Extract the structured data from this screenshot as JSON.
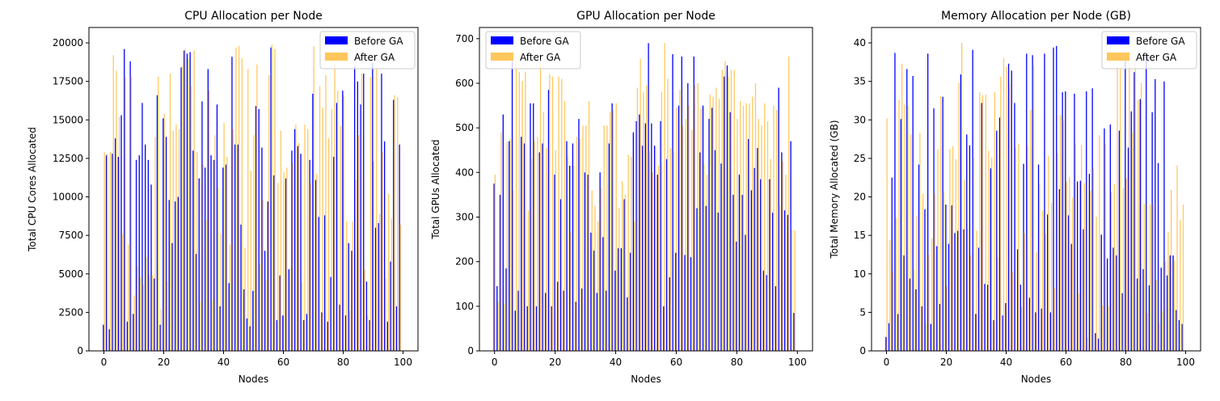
{
  "colors": {
    "before": "#0000ff",
    "after": "#ffc65c",
    "axis": "#000000"
  },
  "chart_data": [
    {
      "type": "bar",
      "title": "CPU Allocation per Node",
      "xlabel": "Nodes",
      "ylabel": "Total CPU Cores Allocated",
      "xlim": [
        -5,
        105
      ],
      "ylim": [
        0,
        21000
      ],
      "xticks": [
        0,
        20,
        40,
        60,
        80,
        100
      ],
      "yticks": [
        0,
        2500,
        5000,
        7500,
        10000,
        12500,
        15000,
        17500,
        20000
      ],
      "legend_position": "top-right",
      "x": [
        0,
        1,
        2,
        3,
        4,
        5,
        6,
        7,
        8,
        9,
        10,
        11,
        12,
        13,
        14,
        15,
        16,
        17,
        18,
        19,
        20,
        21,
        22,
        23,
        24,
        25,
        26,
        27,
        28,
        29,
        30,
        31,
        32,
        33,
        34,
        35,
        36,
        37,
        38,
        39,
        40,
        41,
        42,
        43,
        44,
        45,
        46,
        47,
        48,
        49,
        50,
        51,
        52,
        53,
        54,
        55,
        56,
        57,
        58,
        59,
        60,
        61,
        62,
        63,
        64,
        65,
        66,
        67,
        68,
        69,
        70,
        71,
        72,
        73,
        74,
        75,
        76,
        77,
        78,
        79,
        80,
        81,
        82,
        83,
        84,
        85,
        86,
        87,
        88,
        89,
        90,
        91,
        92,
        93,
        94,
        95,
        96,
        97,
        98,
        99
      ],
      "series": [
        {
          "name": "Before GA",
          "values": [
            1700,
            12700,
            1400,
            12800,
            13800,
            12600,
            15300,
            19600,
            1900,
            18800,
            2400,
            12400,
            12700,
            16100,
            13400,
            12400,
            10800,
            4700,
            16600,
            1700,
            15100,
            13900,
            9800,
            7000,
            9700,
            10000,
            18400,
            19500,
            19300,
            19400,
            13000,
            6300,
            11200,
            16200,
            11900,
            18300,
            12700,
            12400,
            16000,
            2900,
            11900,
            12100,
            4400,
            19100,
            13400,
            13400,
            8200,
            4000,
            2100,
            1600,
            3900,
            15900,
            15700,
            13200,
            6500,
            9700,
            19700,
            11400,
            2000,
            4900,
            2300,
            11200,
            5300,
            13000,
            14400,
            13300,
            12800,
            2000,
            2400,
            12400,
            16700,
            11100,
            8700,
            2500,
            8800,
            1900,
            4800,
            12600,
            16100,
            3000,
            16900,
            2300,
            7000,
            6500,
            18500,
            17500,
            16000,
            18000,
            4500,
            2000,
            18700,
            8000,
            8300,
            18000,
            13600,
            1900,
            5800,
            16300,
            2900,
            13400
          ]
        },
        {
          "name": "After GA",
          "values": [
            12900,
            12800,
            12900,
            19200,
            18200,
            15200,
            7600,
            17800,
            6900,
            17800,
            3600,
            5500,
            4800,
            4300,
            6100,
            4900,
            4900,
            13900,
            17800,
            2700,
            15400,
            4500,
            18000,
            14300,
            14700,
            14400,
            18500,
            19600,
            19000,
            17200,
            19500,
            12900,
            3200,
            12100,
            8500,
            16900,
            3300,
            14000,
            10600,
            7600,
            14800,
            12600,
            6900,
            14400,
            19700,
            19800,
            19000,
            6700,
            18300,
            11700,
            14000,
            18600,
            5600,
            9800,
            4600,
            17900,
            19900,
            19600,
            10900,
            14300,
            11600,
            11900,
            5300,
            12200,
            14700,
            13500,
            4500,
            14700,
            14400,
            10900,
            19800,
            11500,
            17200,
            15800,
            17900,
            13800,
            15700,
            18700,
            16900,
            14600,
            16600,
            8400,
            2600,
            8400,
            11100,
            14000,
            18000,
            5300,
            2300,
            17800,
            12300,
            18300,
            8900,
            12900,
            4700,
            10200,
            8600,
            16600,
            16500,
            8200
          ]
        }
      ]
    },
    {
      "type": "bar",
      "title": "GPU Allocation per Node",
      "xlabel": "Nodes",
      "ylabel": "Total GPUs Allocated",
      "xlim": [
        -5,
        105
      ],
      "ylim": [
        0,
        725
      ],
      "xticks": [
        0,
        20,
        40,
        60,
        80,
        100
      ],
      "yticks": [
        0,
        100,
        200,
        300,
        400,
        500,
        600,
        700
      ],
      "legend_position": "top-left",
      "x": [
        0,
        1,
        2,
        3,
        4,
        5,
        6,
        7,
        8,
        9,
        10,
        11,
        12,
        13,
        14,
        15,
        16,
        17,
        18,
        19,
        20,
        21,
        22,
        23,
        24,
        25,
        26,
        27,
        28,
        29,
        30,
        31,
        32,
        33,
        34,
        35,
        36,
        37,
        38,
        39,
        40,
        41,
        42,
        43,
        44,
        45,
        46,
        47,
        48,
        49,
        50,
        51,
        52,
        53,
        54,
        55,
        56,
        57,
        58,
        59,
        60,
        61,
        62,
        63,
        64,
        65,
        66,
        67,
        68,
        69,
        70,
        71,
        72,
        73,
        74,
        75,
        76,
        77,
        78,
        79,
        80,
        81,
        82,
        83,
        84,
        85,
        86,
        87,
        88,
        89,
        90,
        91,
        92,
        93,
        94,
        95,
        96,
        97,
        98,
        99
      ],
      "series": [
        {
          "name": "Before GA",
          "values": [
            375,
            145,
            350,
            530,
            185,
            470,
            650,
            90,
            135,
            480,
            465,
            100,
            555,
            555,
            100,
            445,
            465,
            130,
            585,
            100,
            395,
            155,
            340,
            135,
            470,
            415,
            465,
            110,
            520,
            140,
            400,
            395,
            265,
            225,
            130,
            400,
            255,
            135,
            465,
            555,
            180,
            230,
            230,
            340,
            120,
            220,
            490,
            515,
            530,
            460,
            510,
            690,
            510,
            460,
            395,
            515,
            100,
            430,
            165,
            665,
            220,
            550,
            660,
            215,
            600,
            210,
            660,
            320,
            445,
            550,
            325,
            520,
            545,
            450,
            310,
            420,
            615,
            640,
            535,
            350,
            245,
            395,
            350,
            260,
            475,
            360,
            410,
            455,
            385,
            180,
            170,
            385,
            310,
            145,
            590,
            445,
            315,
            305,
            470,
            85
          ]
        },
        {
          "name": "After GA",
          "values": [
            395,
            110,
            490,
            105,
            470,
            475,
            360,
            650,
            625,
            605,
            625,
            315,
            430,
            470,
            480,
            645,
            535,
            455,
            620,
            615,
            450,
            615,
            610,
            560,
            435,
            265,
            415,
            480,
            475,
            505,
            505,
            560,
            360,
            325,
            290,
            365,
            505,
            505,
            535,
            540,
            555,
            320,
            380,
            350,
            440,
            435,
            290,
            590,
            655,
            580,
            595,
            445,
            400,
            460,
            415,
            580,
            690,
            610,
            455,
            445,
            545,
            585,
            505,
            520,
            550,
            495,
            595,
            600,
            545,
            420,
            395,
            575,
            570,
            590,
            565,
            630,
            650,
            615,
            630,
            630,
            520,
            560,
            550,
            555,
            555,
            570,
            600,
            520,
            505,
            555,
            515,
            430,
            550,
            540,
            325,
            425,
            395,
            660,
            270,
            270
          ]
        }
      ]
    },
    {
      "type": "bar",
      "title": "Memory Allocation per Node (GB)",
      "xlabel": "Nodes",
      "ylabel": "Total Memory Allocated (GB)",
      "xlim": [
        -5,
        105
      ],
      "ylim": [
        0,
        42
      ],
      "xticks": [
        0,
        20,
        40,
        60,
        80,
        100
      ],
      "yticks": [
        0,
        5,
        10,
        15,
        20,
        25,
        30,
        35,
        40
      ],
      "legend_position": "top-right",
      "x": [
        0,
        1,
        2,
        3,
        4,
        5,
        6,
        7,
        8,
        9,
        10,
        11,
        12,
        13,
        14,
        15,
        16,
        17,
        18,
        19,
        20,
        21,
        22,
        23,
        24,
        25,
        26,
        27,
        28,
        29,
        30,
        31,
        32,
        33,
        34,
        35,
        36,
        37,
        38,
        39,
        40,
        41,
        42,
        43,
        44,
        45,
        46,
        47,
        48,
        49,
        50,
        51,
        52,
        53,
        54,
        55,
        56,
        57,
        58,
        59,
        60,
        61,
        62,
        63,
        64,
        65,
        66,
        67,
        68,
        69,
        70,
        71,
        72,
        73,
        74,
        75,
        76,
        77,
        78,
        79,
        80,
        81,
        82,
        83,
        84,
        85,
        86,
        87,
        88,
        89,
        90,
        91,
        92,
        93,
        94,
        95,
        96,
        97,
        98,
        99
      ],
      "series": [
        {
          "name": "Before GA",
          "values": [
            1.8,
            3.6,
            22.5,
            38.7,
            4.8,
            30.1,
            12.4,
            36.6,
            9.4,
            35.7,
            8.0,
            24.2,
            5.8,
            18.4,
            38.6,
            3.5,
            31.5,
            13.6,
            6.1,
            33.0,
            19.0,
            13.9,
            18.9,
            15.3,
            15.6,
            35.9,
            15.8,
            28.1,
            26.7,
            39.1,
            4.8,
            13.4,
            32.2,
            8.7,
            8.6,
            23.7,
            4.0,
            28.6,
            30.3,
            4.6,
            6.2,
            37.3,
            36.4,
            32.2,
            13.2,
            8.6,
            24.3,
            38.6,
            6.9,
            38.4,
            5.0,
            24.2,
            5.5,
            38.6,
            17.7,
            5.0,
            39.4,
            39.6,
            21.0,
            33.6,
            33.7,
            17.6,
            13.9,
            33.4,
            22.0,
            22.1,
            15.8,
            33.7,
            23.0,
            34.1,
            2.3,
            1.6,
            15.1,
            28.9,
            12.0,
            29.4,
            13.4,
            12.4,
            28.6,
            7.5,
            38.6,
            26.4,
            31.1,
            36.2,
            9.4,
            32.7,
            10.6,
            38.6,
            8.5,
            31.0,
            35.3,
            24.4,
            10.8,
            35.0,
            9.8,
            12.4,
            12.4,
            5.3,
            4.0,
            3.5
          ]
        },
        {
          "name": "After GA",
          "values": [
            30.2,
            14.4,
            10.3,
            17.3,
            32.6,
            37.3,
            32.0,
            31.8,
            28.1,
            10.6,
            17.5,
            28.3,
            20.4,
            3.6,
            12.5,
            14.6,
            20.3,
            26.2,
            33.1,
            20.6,
            8.4,
            26.2,
            26.6,
            24.9,
            34.8,
            40.0,
            22.2,
            15.9,
            12.4,
            25.0,
            15.6,
            33.6,
            33.2,
            33.3,
            26.0,
            25.1,
            33.6,
            12.2,
            35.6,
            38.0,
            36.9,
            34.6,
            10.2,
            26.4,
            26.9,
            5.7,
            15.3,
            26.6,
            31.3,
            37.1,
            12.8,
            21.6,
            18.2,
            15.2,
            25.3,
            19.2,
            8.2,
            25.7,
            30.6,
            29.9,
            22.0,
            22.6,
            19.9,
            26.9,
            7.5,
            26.7,
            21.8,
            1.7,
            20.8,
            23.7,
            17.4,
            28.0,
            5.9,
            26.9,
            5.8,
            20.6,
            21.7,
            36.9,
            36.8,
            21.2,
            22.4,
            38.2,
            28.4,
            38.1,
            32.6,
            34.8,
            19.1,
            4.9,
            19.0,
            19.0,
            9.2,
            3.6,
            5.2,
            11.6,
            15.4,
            20.9,
            11.8,
            24.1,
            17.0,
            19.0
          ]
        }
      ]
    }
  ]
}
